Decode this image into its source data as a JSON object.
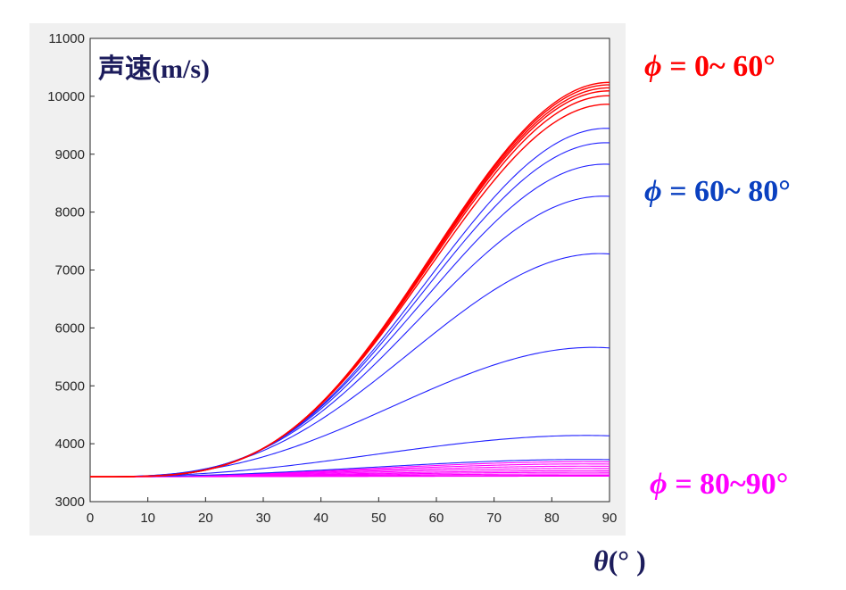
{
  "chart_data": {
    "type": "line",
    "title": "声速(m/s)",
    "xlabel": "θ(°)",
    "xlabel_symbol": "θ",
    "xlabel_unit": "(°  )",
    "xlim": [
      0,
      90
    ],
    "ylim": [
      3000,
      11000
    ],
    "xticks": [
      0,
      10,
      20,
      30,
      40,
      50,
      60,
      70,
      80,
      90
    ],
    "yticks": [
      3000,
      4000,
      5000,
      6000,
      7000,
      8000,
      9000,
      10000,
      11000
    ],
    "grid": false,
    "x0_value": 3430,
    "curve_shape": "monotonic rise from common start, peak at theta=90",
    "groups": [
      {
        "color": "#ff0000",
        "label_symbol": "ϕ",
        "label_text": " = 0~ 60°",
        "peak_values_at_90": [
          10240,
          10200,
          10150,
          10100,
          10020,
          9880
        ]
      },
      {
        "color": "#2020ff",
        "label_symbol": "ϕ",
        "label_text": " = 60~ 80°",
        "peak_values_at_90": [
          9480,
          9240,
          8880,
          8340,
          7360,
          5730,
          4170,
          3740
        ]
      },
      {
        "color": "#ff00ff",
        "label_symbol": "ϕ",
        "label_text": " = 80~90°",
        "peak_values_at_90": [
          3700,
          3660,
          3620,
          3580,
          3540,
          3510,
          3480,
          3455,
          3440
        ]
      }
    ]
  }
}
